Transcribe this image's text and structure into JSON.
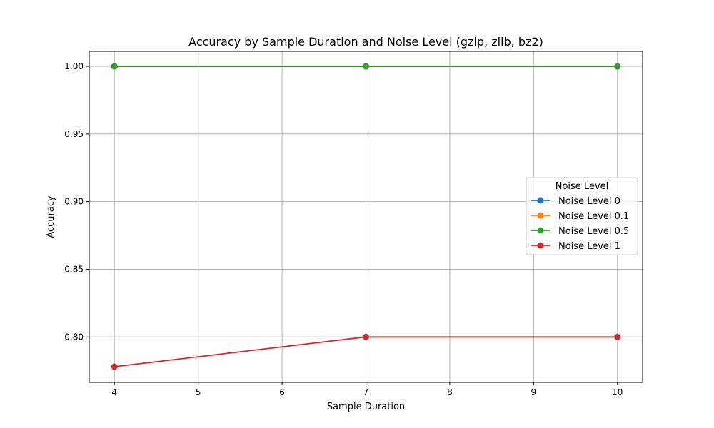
{
  "chart_data": {
    "type": "line",
    "title": "Accuracy by Sample Duration and Noise Level (gzip, zlib, bz2)",
    "xlabel": "Sample Duration",
    "ylabel": "Accuracy",
    "xlim": [
      3.7,
      10.3
    ],
    "ylim": [
      0.7664,
      1.0111
    ],
    "xticks": [
      4,
      5,
      6,
      7,
      8,
      9,
      10
    ],
    "yticks": [
      0.8,
      0.85,
      0.9,
      0.95,
      1.0
    ],
    "xtick_labels": [
      "4",
      "5",
      "6",
      "7",
      "8",
      "9",
      "10"
    ],
    "ytick_labels": [
      "0.80",
      "0.85",
      "0.90",
      "0.95",
      "1.00"
    ],
    "grid": true,
    "legend": {
      "title": "Noise Level",
      "placement": "center-right"
    },
    "x": [
      4,
      7,
      10
    ],
    "series": [
      {
        "name": "Noise Level 0",
        "values": [
          1.0,
          1.0,
          1.0
        ],
        "color": "#1f77b4"
      },
      {
        "name": "Noise Level 0.1",
        "values": [
          1.0,
          1.0,
          1.0
        ],
        "color": "#ff7f0e"
      },
      {
        "name": "Noise Level 0.5",
        "values": [
          1.0,
          1.0,
          1.0
        ],
        "color": "#2ca02c"
      },
      {
        "name": "Noise Level 1",
        "values": [
          0.778,
          0.8,
          0.8
        ],
        "color": "#d62728"
      }
    ]
  }
}
